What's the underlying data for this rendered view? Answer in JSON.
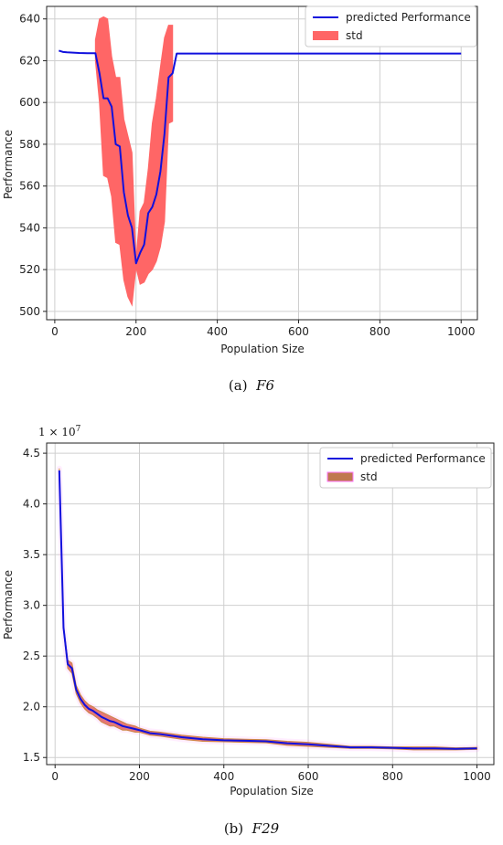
{
  "chart_data": [
    {
      "type": "line",
      "caption_label": "(a)",
      "caption_function": "F6",
      "xlabel": "Population Size",
      "ylabel": "Performance",
      "xlim": [
        -20,
        1040
      ],
      "ylim": [
        496,
        646
      ],
      "xticks": [
        0,
        200,
        400,
        600,
        800,
        1000
      ],
      "yticks": [
        500,
        520,
        540,
        560,
        580,
        600,
        620,
        640
      ],
      "grid": true,
      "legend_position": "top-right",
      "colors": {
        "line": "#1010dd",
        "band": "#ff6666"
      },
      "series": [
        {
          "name": "predicted Performance",
          "x": [
            10,
            20,
            30,
            40,
            60,
            80,
            100,
            110,
            120,
            130,
            140,
            150,
            160,
            170,
            180,
            190,
            200,
            210,
            220,
            230,
            240,
            250,
            260,
            270,
            280,
            290,
            300,
            350,
            400,
            500,
            600,
            700,
            800,
            900,
            1000
          ],
          "values": [
            624.8,
            624.2,
            624.0,
            623.9,
            623.7,
            623.6,
            623.6,
            614,
            602,
            602,
            598,
            580,
            579,
            557,
            546,
            540,
            523,
            528,
            532,
            547,
            550,
            556,
            567,
            585,
            612,
            614,
            623.4,
            623.4,
            623.4,
            623.4,
            623.4,
            623.4,
            623.4,
            623.4,
            623.4
          ]
        },
        {
          "name": "std",
          "x": [
            100,
            110,
            120,
            130,
            140,
            150,
            160,
            170,
            180,
            190,
            200,
            210,
            220,
            230,
            240,
            250,
            260,
            270,
            280,
            290
          ],
          "lower": [
            620,
            600,
            565,
            564,
            555,
            533,
            532,
            515,
            507,
            503,
            521,
            513,
            514,
            518,
            520,
            524,
            531,
            543,
            590,
            591
          ],
          "upper": [
            630,
            640,
            641,
            640,
            622,
            612,
            612,
            592,
            584,
            576,
            525,
            548,
            552,
            568,
            590,
            602,
            617,
            631,
            637,
            637
          ]
        }
      ]
    },
    {
      "type": "line",
      "caption_label": "(b)",
      "caption_function": "F29",
      "multiplier_base": "1 × 10",
      "multiplier_exp": "7",
      "xlabel": "Population Size",
      "ylabel": "Performance",
      "xlim": [
        -20,
        1040
      ],
      "ylim": [
        1.43,
        4.6
      ],
      "xticks": [
        0,
        200,
        400,
        600,
        800,
        1000
      ],
      "yticks": [
        "1.5",
        "2.0",
        "2.5",
        "3.0",
        "3.5",
        "4.0",
        "4.5"
      ],
      "grid": true,
      "legend_position": "top-right",
      "colors": {
        "line": "#1010dd",
        "band": "#e06060",
        "band_edge": "#cc8844",
        "halo": "#ff77ff"
      },
      "series": [
        {
          "name": "predicted Performance",
          "x": [
            10,
            20,
            30,
            40,
            50,
            60,
            70,
            80,
            90,
            100,
            110,
            120,
            130,
            140,
            150,
            160,
            170,
            180,
            190,
            200,
            225,
            250,
            300,
            350,
            400,
            450,
            500,
            550,
            600,
            650,
            700,
            750,
            800,
            850,
            900,
            950,
            1000
          ],
          "values": [
            4.33,
            2.78,
            2.42,
            2.38,
            2.17,
            2.08,
            2.02,
            1.98,
            1.96,
            1.93,
            1.9,
            1.88,
            1.86,
            1.85,
            1.83,
            1.81,
            1.8,
            1.79,
            1.78,
            1.77,
            1.74,
            1.73,
            1.7,
            1.68,
            1.67,
            1.665,
            1.66,
            1.64,
            1.63,
            1.615,
            1.6,
            1.6,
            1.595,
            1.59,
            1.59,
            1.585,
            1.59
          ]
        },
        {
          "name": "std",
          "spread": [
            0.02,
            0.02,
            0.04,
            0.05,
            0.04,
            0.04,
            0.04,
            0.04,
            0.04,
            0.04,
            0.05,
            0.05,
            0.05,
            0.04,
            0.04,
            0.04,
            0.03,
            0.03,
            0.03,
            0.02,
            0.02,
            0.02,
            0.02,
            0.02,
            0.015,
            0.015,
            0.015,
            0.02,
            0.02,
            0.015,
            0.01,
            0.01,
            0.01,
            0.015,
            0.015,
            0.01,
            0.01
          ]
        }
      ]
    }
  ]
}
